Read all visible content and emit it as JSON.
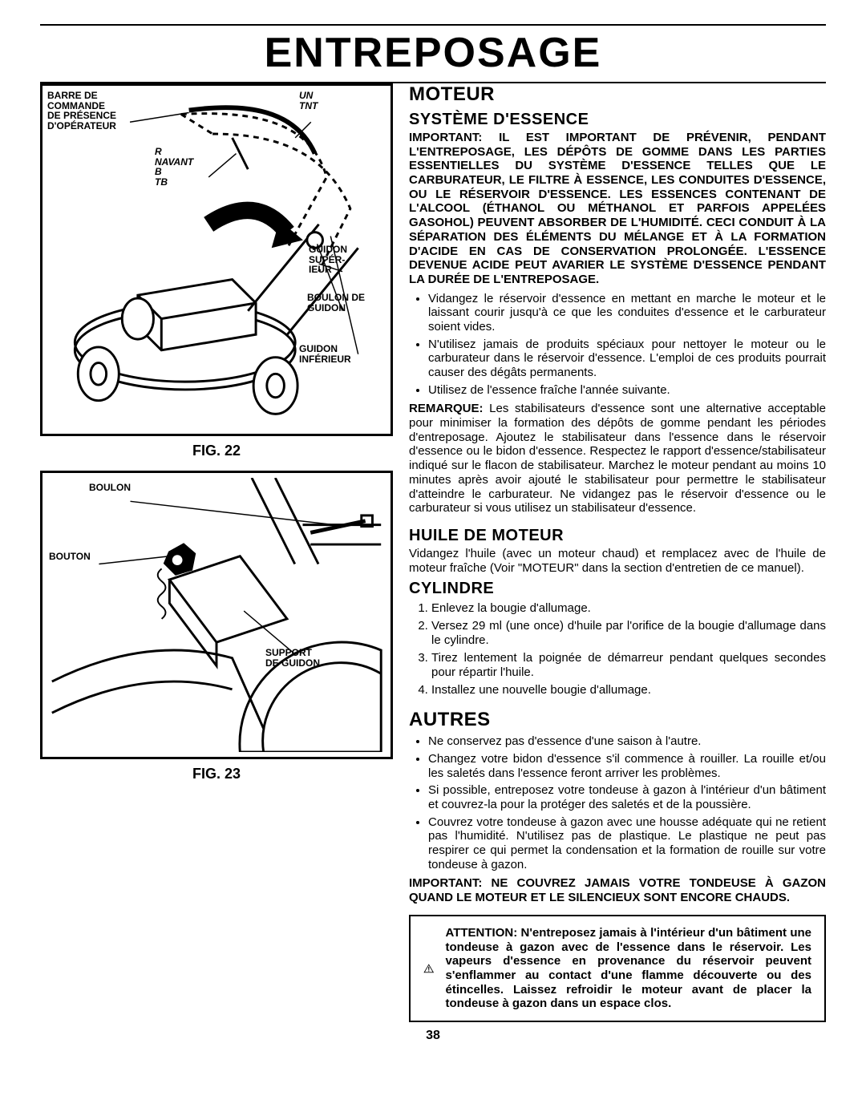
{
  "page_number": "38",
  "title": "ENTREPOSAGE",
  "figures": {
    "fig22": {
      "caption": "FIG. 22",
      "labels": {
        "barre": "BARRE DE\nCOMMANDE\nDE PRÉSENCE\nD'OPÉRATEUR",
        "navant": "R\nNAVANT\nB\nTB",
        "tnt": "UN\nTNT",
        "supguidon": "GUIDON\nSUPÉR-\nIEUR",
        "boulon": "BOULON DE\nGUIDON",
        "infguidon": "GUIDON\nINFÉRIEUR"
      }
    },
    "fig23": {
      "caption": "FIG. 23",
      "labels": {
        "boulon": "BOULON",
        "bouton": "BOUTON",
        "support": "SUPPORT\nDE GUIDON"
      }
    }
  },
  "sections": {
    "moteur": {
      "heading": "MOTEUR",
      "systeme": {
        "heading": "SYSTÈME D'ESSENCE",
        "important": "IMPORTANT: IL EST IMPORTANT DE PRÉVENIR, PENDANT L'ENTREPOSAGE, LES DÉPÔTS DE GOMME DANS LES PARTIES ESSENTIELLES DU SYSTÈME D'ESSENCE TELLES QUE LE CARBURATEUR, LE FILTRE À ESSENCE, LES CONDUITES D'ESSENCE, OU LE RÉSERVOIR D'ESSENCE. LES ESSENCES CONTENANT DE L'ALCOOL (ÉTHANOL OU MÉTHANOL ET PARFOIS APPELÉES GASOHOL) PEUVENT ABSORBER DE L'HUMIDITÉ. CECI CONDUIT À LA SÉPARATION DES ÉLÉMENTS DU MÉLANGE ET À LA FORMATION D'ACIDE EN CAS DE CONSERVATION PROLONGÉE. L'ESSENCE DEVENUE ACIDE PEUT AVARIER LE SYSTÈME D'ESSENCE PENDANT LA DURÉE DE L'ENTREPOSAGE.",
        "bullets": [
          "Vidangez le réservoir d'essence en mettant en marche le moteur et le laissant courir jusqu'à ce que les conduites d'essence et le carburateur soient vides.",
          "N'utilisez jamais de produits spéciaux pour nettoyer le moteur ou le carburateur dans le réservoir d'essence. L'emploi de ces produits pourrait causer des dégâts permanents.",
          "Utilisez de l'essence fraîche l'année suivante."
        ],
        "remarque": "REMARQUE: Les stabilisateurs d'essence sont une alternative acceptable pour minimiser la formation des dépôts de gomme pendant les périodes d'entreposage. Ajoutez le stabilisateur dans l'essence dans le réservoir d'essence ou le bidon d'essence. Respectez le rapport d'essence/stabilisateur indiqué sur le flacon de stabilisateur. Marchez le moteur pendant au moins 10 minutes après avoir ajouté le stabilisateur pour permettre le stabilisateur d'atteindre le carburateur. Ne vidangez pas le réservoir d'essence ou le carburateur si vous utilisez un stabilisateur d'essence."
      },
      "huile": {
        "heading": "HUILE DE MOTEUR",
        "text": "Vidangez l'huile (avec un moteur chaud) et remplacez avec de l'huile de moteur fraîche (Voir \"MOTEUR\" dans la section d'entretien de ce manuel)."
      },
      "cylindre": {
        "heading": "CYLINDRE",
        "steps": [
          "Enlevez la bougie d'allumage.",
          "Versez 29 ml (une once) d'huile par l'orifice de la bougie d'allumage dans le cylindre.",
          "Tirez lentement la poignée de démarreur pendant quelques secondes pour répartir l'huile.",
          "Installez une nouvelle bougie d'allumage."
        ]
      }
    },
    "autres": {
      "heading": "AUTRES",
      "bullets": [
        "Ne conservez pas d'essence d'une saison à l'autre.",
        "Changez votre bidon d'essence s'il commence à rouiller. La rouille et/ou les saletés dans l'essence feront arriver les problèmes.",
        "Si possible, entreposez votre tondeuse à gazon à l'intérieur d'un bâtiment et couvrez-la pour la protéger des saletés et de la poussière.",
        "Couvrez votre tondeuse à gazon avec une housse adéquate qui ne retient pas l'humidité. N'utilisez pas de plastique. Le plastique ne peut pas respirer ce qui permet la condensation et la formation de rouille sur votre tondeuse à gazon."
      ],
      "important": "IMPORTANT: NE COUVREZ JAMAIS VOTRE TONDEUSE À GAZON QUAND LE MOTEUR ET LE SILENCIEUX SONT ENCORE CHAUDS.",
      "warning": "ATTENTION: N'entreposez jamais à l'intérieur d'un bâtiment une tondeuse à gazon avec de l'essence dans le réservoir. Les vapeurs d'essence en provenance du réservoir peuvent s'enflammer au contact d'une flamme découverte ou des étincelles. Laissez refroidir le moteur avant de placer la tondeuse à gazon dans un espace clos."
    }
  }
}
